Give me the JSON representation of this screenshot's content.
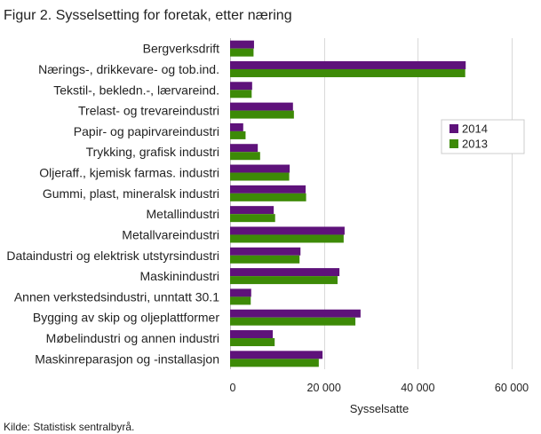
{
  "figure": {
    "source": "Kilde: Statistisk sentralbyrå."
  },
  "chart_data": {
    "type": "bar",
    "orientation": "horizontal",
    "title": "Figur 2. Sysselsetting for foretak, etter næring",
    "xlabel": "Sysselsatte",
    "ylabel": "",
    "xlim": [
      0,
      60000
    ],
    "xticks": [
      0,
      20000,
      40000,
      60000
    ],
    "xtick_labels": [
      "0",
      "20 000",
      "40 000",
      "60 000"
    ],
    "grid": "vertical",
    "legend": "right",
    "categories": [
      "Bergverksdrift",
      "Nærings-, drikkevare- og tob.ind.",
      "Tekstil-, bekledn.-, lærvareind.",
      "Trelast- og trevareindustri",
      "Papir- og papirvareindustri",
      "Trykking, grafisk industri",
      "Oljeraff., kjemisk farmas. industri",
      "Gummi, plast, mineralsk industri",
      "Metallindustri",
      "Metallvareindustri",
      "Dataindustri og elektrisk utstyrsindustri",
      "Maskinindustri",
      "Annen verkstedsindustri, unntatt 30.1",
      "Bygging av skip og oljeplattformer",
      "Møbelindustri og annen industri",
      "Maskinreparasjon og -installasjon"
    ],
    "series": [
      {
        "name": "2014",
        "color": "#5e127a",
        "values": [
          5100,
          50200,
          4700,
          13400,
          2800,
          5900,
          12700,
          16100,
          9300,
          24400,
          15000,
          23300,
          4500,
          27800,
          9100,
          19700
        ]
      },
      {
        "name": "2013",
        "color": "#3d8a07",
        "values": [
          5000,
          50100,
          4600,
          13600,
          3300,
          6400,
          12600,
          16200,
          9600,
          24200,
          14800,
          22900,
          4400,
          26700,
          9500,
          18900
        ]
      }
    ]
  }
}
